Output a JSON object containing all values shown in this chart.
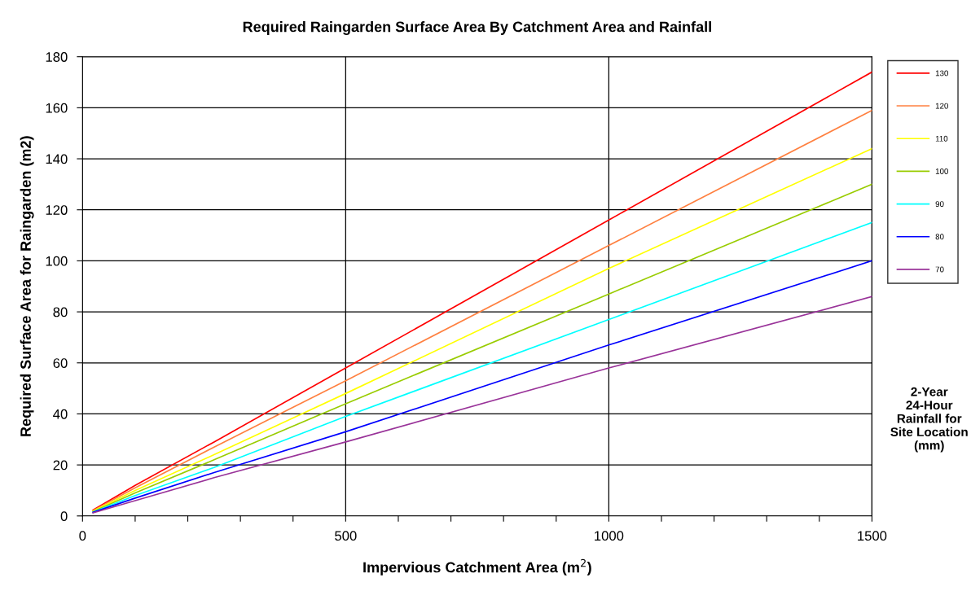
{
  "chart_data": {
    "type": "line",
    "title": "Required Raingarden Surface Area By Catchment Area and Rainfall",
    "xlabel": "Impervious Catchment Area (m$^{2}$)",
    "ylabel": "Required Surface Area for Raingarden (m2)",
    "x": [
      20,
      100,
      250,
      500,
      1000,
      1500
    ],
    "series": [
      {
        "name": "130",
        "color": "#ff0000",
        "values": [
          2.3,
          12,
          29,
          58,
          116,
          174
        ]
      },
      {
        "name": "120",
        "color": "#ff8040",
        "values": [
          2.1,
          11,
          27,
          53,
          106,
          159
        ]
      },
      {
        "name": "110",
        "color": "#ffff00",
        "values": [
          1.9,
          10,
          24,
          48,
          97,
          144
        ]
      },
      {
        "name": "100",
        "color": "#99cc00",
        "values": [
          1.7,
          9,
          22,
          44,
          87,
          130
        ]
      },
      {
        "name": "90",
        "color": "#00ffff",
        "values": [
          1.5,
          8,
          19,
          39,
          77,
          115
        ]
      },
      {
        "name": "80",
        "color": "#0000ff",
        "values": [
          1.4,
          7,
          17,
          33,
          67,
          100
        ]
      },
      {
        "name": "70",
        "color": "#993399",
        "values": [
          1.2,
          6,
          15,
          29,
          58,
          86
        ]
      }
    ],
    "xlim": [
      0,
      1500
    ],
    "ylim": [
      0,
      180
    ],
    "xticks": [
      0,
      {
        "value": 100,
        "label": null
      },
      {
        "value": 200,
        "label": null
      },
      {
        "value": 300,
        "label": null
      },
      {
        "value": 400,
        "label": null
      },
      500,
      {
        "value": 600,
        "label": null
      },
      {
        "value": 700,
        "label": null
      },
      {
        "value": 800,
        "label": null
      },
      {
        "value": 900,
        "label": null
      },
      1000,
      {
        "value": 1100,
        "label": null
      },
      {
        "value": 1200,
        "label": null
      },
      {
        "value": 1300,
        "label": null
      },
      {
        "value": 1400,
        "label": null
      },
      1500
    ],
    "yticks": [
      0,
      20,
      40,
      60,
      80,
      100,
      120,
      140,
      160,
      180
    ],
    "grid": true,
    "legend": "right",
    "marker": "none",
    "line_style": "solid",
    "annotations": [
      "2-Year 24-Hour Rainfall for Site Location (mm)"
    ]
  }
}
